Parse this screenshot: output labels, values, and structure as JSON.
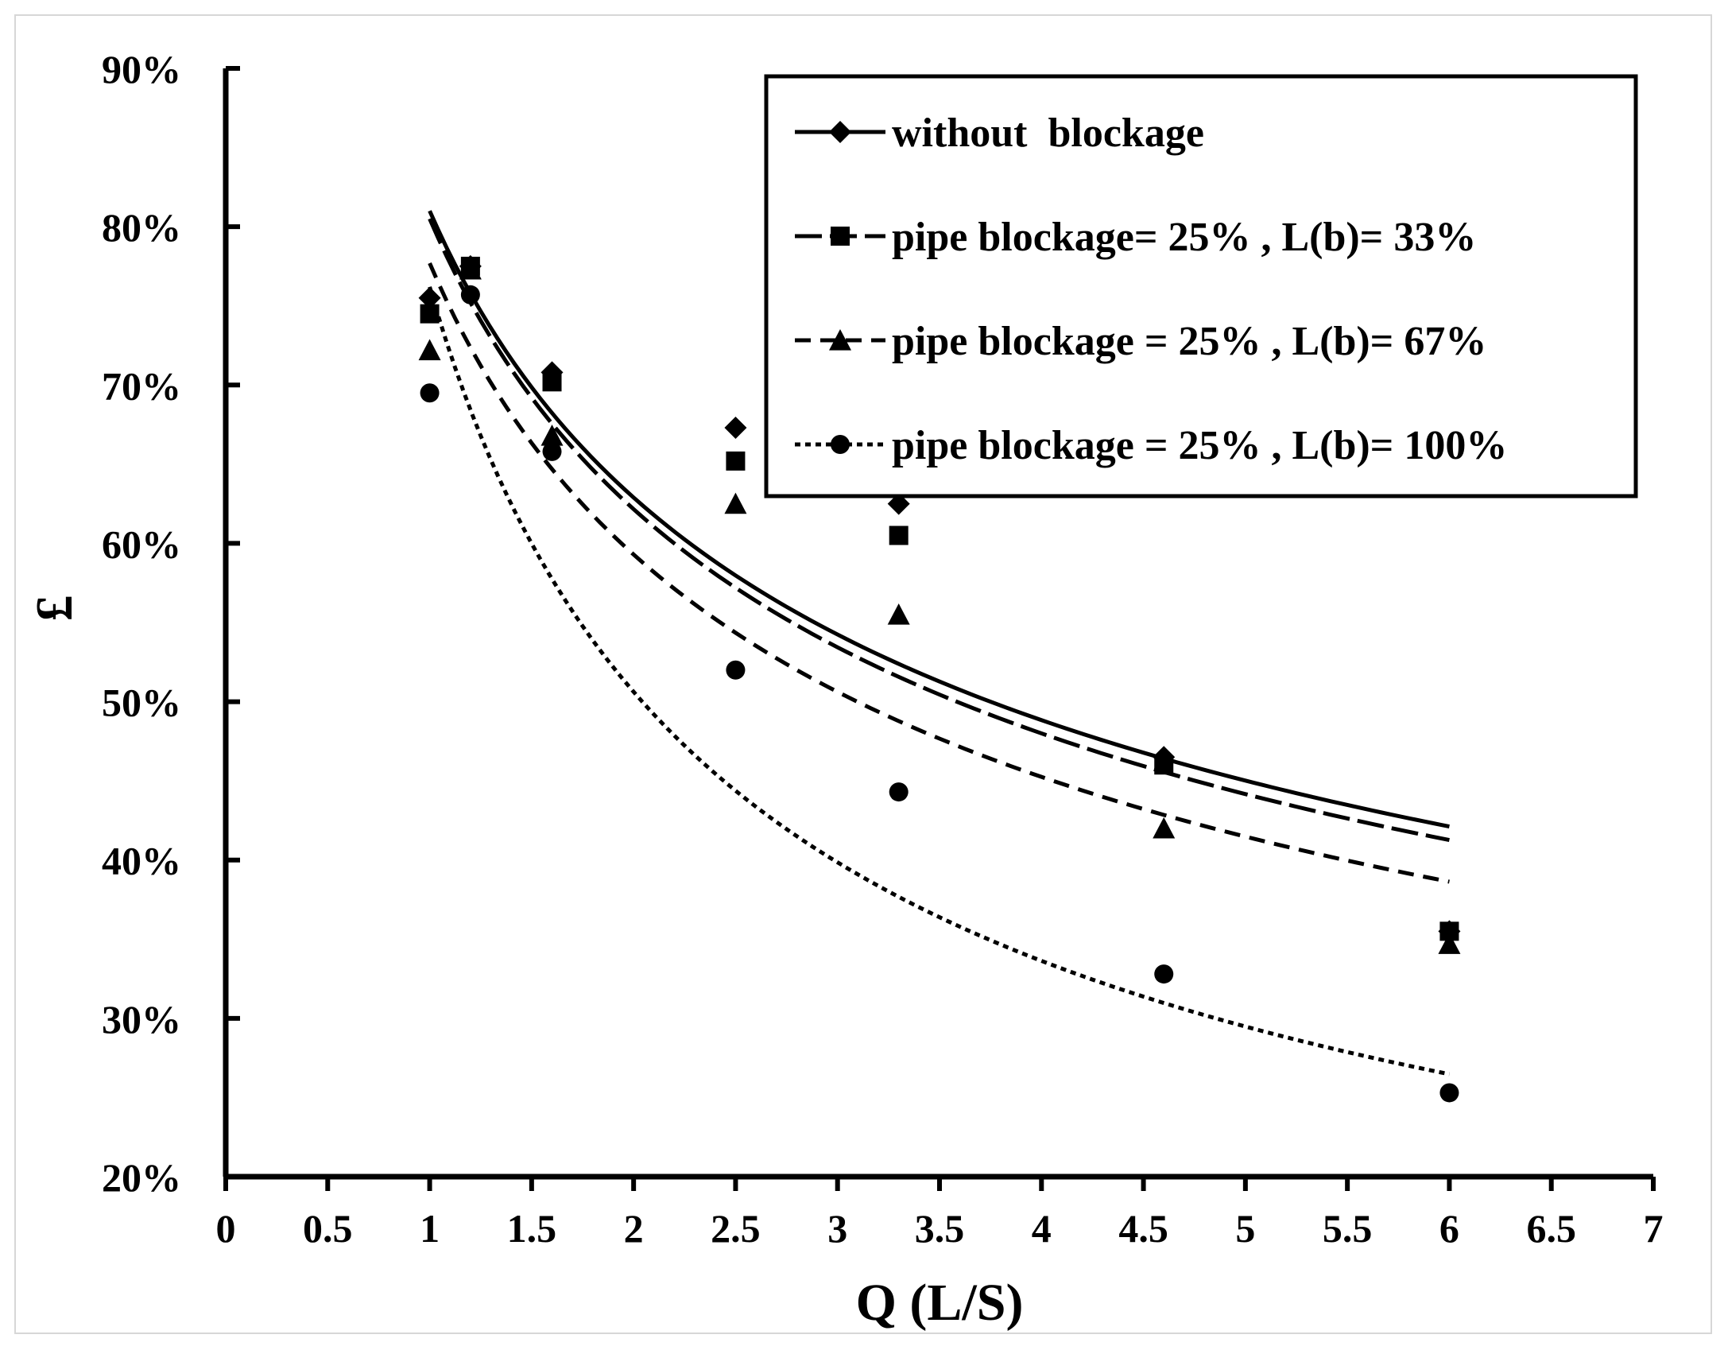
{
  "chart_data": {
    "type": "scatter",
    "title": "",
    "xlabel": "Q (L/S)",
    "ylabel": "£",
    "xlim": [
      0,
      7
    ],
    "ylim": [
      0.2,
      0.9
    ],
    "x_ticks": [
      0,
      0.5,
      1,
      1.5,
      2,
      2.5,
      3,
      3.5,
      4,
      4.5,
      5,
      5.5,
      6,
      6.5,
      7
    ],
    "x_tick_labels": [
      "0",
      "0.5",
      "1",
      "1.5",
      "2",
      "2.5",
      "3",
      "3.5",
      "4",
      "4.5",
      "5",
      "5.5",
      "6",
      "6.5",
      "7"
    ],
    "y_ticks": [
      0.2,
      0.3,
      0.4,
      0.5,
      0.6,
      0.7,
      0.8,
      0.9
    ],
    "y_tick_labels": [
      "20%",
      "30%",
      "40%",
      "50%",
      "60%",
      "70%",
      "80%",
      "90%"
    ],
    "grid": false,
    "legend_position": "top-right",
    "trendline": "power fit for each series",
    "series": [
      {
        "name": "without  blockage",
        "marker": "diamond",
        "line_style": "solid",
        "color": "#000000",
        "x": [
          1,
          1.2,
          1.6,
          2.5,
          3.3,
          4.6,
          6
        ],
        "y": [
          0.755,
          0.775,
          0.708,
          0.673,
          0.625,
          0.465,
          0.355
        ],
        "trend": {
          "a": 0.81,
          "b": -0.365
        }
      },
      {
        "name": "pipe blockage= 25% , L(b)= 33%",
        "marker": "square",
        "line_style": "long-dash",
        "color": "#000000",
        "x": [
          1,
          1.2,
          1.6,
          2.5,
          3.3,
          4.6,
          6
        ],
        "y": [
          0.745,
          0.775,
          0.702,
          0.652,
          0.605,
          0.46,
          0.355
        ],
        "trend": {
          "a": 0.805,
          "b": -0.373
        }
      },
      {
        "name": "pipe blockage = 25% , L(b)= 67%",
        "marker": "triangle",
        "line_style": "dash",
        "color": "#000000",
        "x": [
          1,
          1.2,
          1.6,
          2.5,
          3.3,
          4.6,
          6
        ],
        "y": [
          0.722,
          0.773,
          0.668,
          0.625,
          0.555,
          0.42,
          0.347
        ],
        "trend": {
          "a": 0.777,
          "b": -0.39
        }
      },
      {
        "name": "pipe blockage = 25% , L(b)= 100%",
        "marker": "circle",
        "line_style": "dot",
        "color": "#000000",
        "x": [
          1,
          1.2,
          1.6,
          2.5,
          3.3,
          4.6,
          6
        ],
        "y": [
          0.695,
          0.757,
          0.658,
          0.52,
          0.443,
          0.328,
          0.253
        ],
        "trend": {
          "a": 0.762,
          "b": -0.59
        }
      }
    ]
  }
}
